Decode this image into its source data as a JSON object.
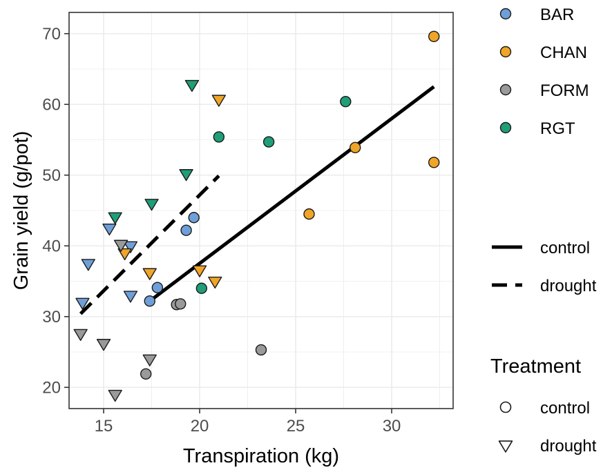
{
  "chart_data": {
    "type": "scatter",
    "xlabel": "Transpiration (kg)",
    "ylabel": "Grain yield (g/pot)",
    "xlim": [
      13.2,
      33.2
    ],
    "ylim": [
      17.0,
      73.0
    ],
    "x_ticks": [
      15,
      20,
      25,
      30
    ],
    "y_ticks": [
      20,
      30,
      40,
      50,
      60,
      70
    ],
    "grid": true,
    "legend_genotype": {
      "entries": [
        {
          "name": "BAR",
          "color": "#6f9fd8"
        },
        {
          "name": "CHAN",
          "color": "#f0a528"
        },
        {
          "name": "FORM",
          "color": "#9a9a9a"
        },
        {
          "name": "RGT",
          "color": "#1f9e78"
        }
      ]
    },
    "legend_lines": {
      "entries": [
        {
          "name": "control",
          "style": "solid"
        },
        {
          "name": "drought",
          "style": "dashed"
        }
      ]
    },
    "legend_treatment": {
      "title": "Treatment",
      "entries": [
        {
          "name": "control",
          "shape": "circle"
        },
        {
          "name": "drought",
          "shape": "triangle-down"
        }
      ]
    },
    "series": [
      {
        "genotype": "BAR",
        "treatment": "control",
        "points": [
          [
            17.4,
            32.2
          ],
          [
            17.8,
            34.1
          ],
          [
            19.3,
            42.2
          ],
          [
            19.7,
            44.0
          ]
        ]
      },
      {
        "genotype": "BAR",
        "treatment": "drought",
        "points": [
          [
            13.9,
            32.0
          ],
          [
            14.2,
            37.5
          ],
          [
            15.3,
            42.5
          ],
          [
            16.4,
            40.0
          ],
          [
            16.4,
            33.0
          ]
        ]
      },
      {
        "genotype": "CHAN",
        "treatment": "control",
        "points": [
          [
            25.7,
            44.5
          ],
          [
            28.1,
            53.9
          ],
          [
            32.2,
            51.8
          ],
          [
            32.2,
            69.6
          ]
        ]
      },
      {
        "genotype": "CHAN",
        "treatment": "drought",
        "points": [
          [
            16.1,
            39.0
          ],
          [
            17.4,
            36.2
          ],
          [
            20.0,
            36.6
          ],
          [
            20.8,
            35.0
          ],
          [
            21.0,
            60.7
          ]
        ]
      },
      {
        "genotype": "FORM",
        "treatment": "control",
        "points": [
          [
            17.2,
            21.9
          ],
          [
            18.8,
            31.7
          ],
          [
            19.0,
            31.8
          ],
          [
            23.2,
            25.3
          ]
        ]
      },
      {
        "genotype": "FORM",
        "treatment": "drought",
        "points": [
          [
            13.8,
            27.6
          ],
          [
            15.0,
            26.2
          ],
          [
            15.6,
            19.0
          ],
          [
            15.9,
            40.2
          ],
          [
            17.4,
            24.0
          ]
        ]
      },
      {
        "genotype": "RGT",
        "treatment": "control",
        "points": [
          [
            20.1,
            34.0
          ],
          [
            21.0,
            55.4
          ],
          [
            23.6,
            54.7
          ],
          [
            27.6,
            60.4
          ]
        ]
      },
      {
        "genotype": "RGT",
        "treatment": "drought",
        "points": [
          [
            15.6,
            44.1
          ],
          [
            17.5,
            46.0
          ],
          [
            19.3,
            50.2
          ],
          [
            19.6,
            62.8
          ]
        ]
      }
    ],
    "fit_lines": [
      {
        "treatment": "control",
        "style": "solid",
        "x": [
          17.4,
          32.2
        ],
        "y": [
          32.2,
          62.5
        ]
      },
      {
        "treatment": "drought",
        "style": "dashed",
        "x": [
          13.8,
          21.0
        ],
        "y": [
          30.4,
          49.9
        ]
      }
    ]
  }
}
